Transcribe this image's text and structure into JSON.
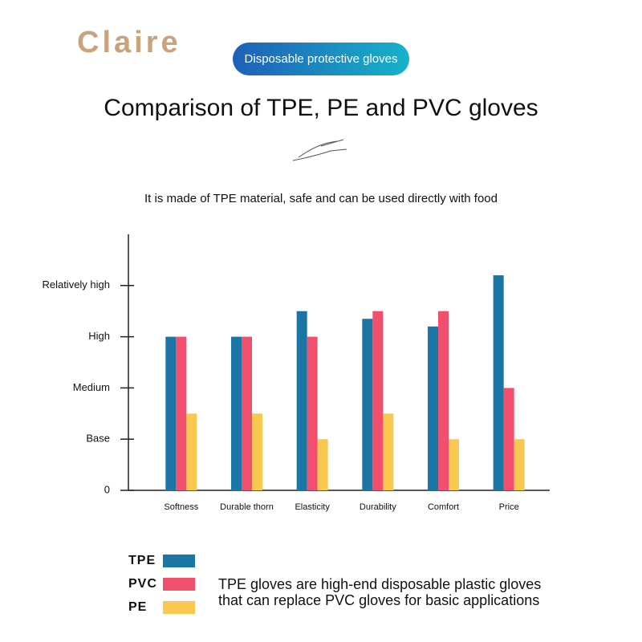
{
  "brand": "Claire",
  "badge": "Disposable protective gloves",
  "chart_data": {
    "type": "bar",
    "title": "Comparison of TPE, PE and PVC gloves",
    "subtitle": "It is made of TPE material, safe and can be used directly with food",
    "categories": [
      "Softness",
      "Durable thorn",
      "Elasticity",
      "Durability",
      "Comfort",
      "Price"
    ],
    "series": [
      {
        "name": "TPE",
        "color": "#1b76a6",
        "values": [
          3,
          3,
          3.5,
          3.35,
          3.2,
          4.2
        ]
      },
      {
        "name": "PVC",
        "color": "#f0506e",
        "values": [
          3,
          3,
          3,
          3.5,
          3.5,
          2
        ]
      },
      {
        "name": "PE",
        "color": "#f9c851",
        "values": [
          1.5,
          1.5,
          1,
          1.5,
          1,
          1
        ]
      }
    ],
    "ylim": [
      0,
      5
    ],
    "yticks": [
      0,
      {
        "value": 1,
        "label": "Base"
      },
      {
        "value": 2,
        "label": "Medium"
      },
      {
        "value": 3,
        "label": "High"
      },
      {
        "value": 4,
        "label": "Relatively high"
      }
    ],
    "annotations": [
      "TPE gloves are high-end disposable plastic gloves",
      "that can replace PVC gloves for basic applications"
    ]
  }
}
